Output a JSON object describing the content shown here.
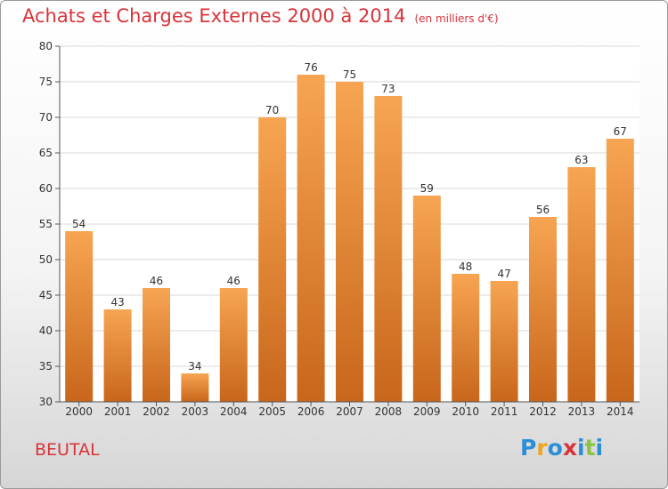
{
  "title": "Achats et Charges Externes 2000 à 2014",
  "subtitle": "(en milliers d'€)",
  "footer_label": "BEUTAL",
  "logo": {
    "text": "Proxiti",
    "letter_colors": [
      "#2a8fd6",
      "#f0a51c",
      "#2a8fd6",
      "#d9333a",
      "#2a8fd6",
      "#8bc34a",
      "#2a8fd6"
    ]
  },
  "colors": {
    "title": "#d9333a",
    "bar_top": "#f7a552",
    "bar_bottom": "#c8661b",
    "grid": "#d9d9d9"
  },
  "chart_data": {
    "type": "bar",
    "title": "Achats et Charges Externes 2000 à 2014",
    "subtitle": "(en milliers d'€)",
    "xlabel": "",
    "ylabel": "",
    "categories": [
      "2000",
      "2001",
      "2002",
      "2003",
      "2004",
      "2005",
      "2006",
      "2007",
      "2008",
      "2009",
      "2010",
      "2011",
      "2012",
      "2013",
      "2014"
    ],
    "values": [
      54,
      43,
      46,
      34,
      46,
      70,
      76,
      75,
      73,
      59,
      48,
      47,
      56,
      63,
      67
    ],
    "ylim": [
      30,
      80
    ],
    "yticks": [
      30,
      35,
      40,
      45,
      50,
      55,
      60,
      65,
      70,
      75,
      80
    ],
    "grid": true,
    "data_labels": true
  }
}
